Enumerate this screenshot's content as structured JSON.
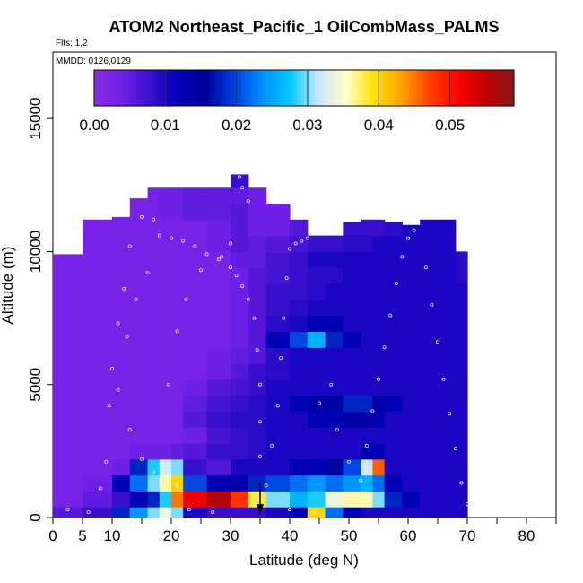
{
  "chart_data": {
    "type": "heatmap",
    "title": "ATOM2 Northeast_Pacific_1 OilCombMass_PALMS",
    "flights_label": "Flts: 1,2",
    "date_label": "MMDD: 0126,0129",
    "xlabel": "Latitude (deg N)",
    "ylabel": "Altitude (m)",
    "xlim": [
      0,
      85
    ],
    "ylim": [
      0,
      17500
    ],
    "x_ticks": [
      0,
      5,
      10,
      15,
      20,
      25,
      30,
      35,
      40,
      45,
      50,
      55,
      60,
      65,
      70,
      75,
      80,
      85
    ],
    "x_tick_labels": [
      {
        "value": 0,
        "label": "0"
      },
      {
        "value": 5,
        "label": "5"
      },
      {
        "value": 10,
        "label": "10"
      },
      {
        "value": 20,
        "label": "20"
      },
      {
        "value": 30,
        "label": "30"
      },
      {
        "value": 40,
        "label": "40"
      },
      {
        "value": 50,
        "label": "50"
      },
      {
        "value": 60,
        "label": "60"
      },
      {
        "value": 70,
        "label": "70"
      },
      {
        "value": 80,
        "label": "80"
      }
    ],
    "y_ticks": [
      0,
      5000,
      10000,
      15000
    ],
    "y_tick_labels": [
      "0",
      "5000",
      "10000",
      "15000"
    ],
    "colorbar": {
      "min": 0,
      "max": 0.059,
      "ticks": [
        0.0,
        0.01,
        0.02,
        0.03,
        0.04,
        0.05
      ],
      "tick_labels": [
        "0.00",
        "0.01",
        "0.02",
        "0.03",
        "0.04",
        "0.05"
      ],
      "colors": [
        "#8a2be2",
        "#7020e8",
        "#3a10d0",
        "#0000b8",
        "#00009a",
        "#0040e0",
        "#0090ff",
        "#00c8ff",
        "#c8e8ff",
        "#ffffc8",
        "#ffe000",
        "#ffa000",
        "#ff4000",
        "#ff0000",
        "#c00000",
        "#8b1a1a"
      ]
    },
    "level_boundaries": [
      0,
      400,
      1000,
      1600,
      2200,
      2800,
      3400,
      4000,
      4600,
      5200,
      5800,
      6400,
      7000,
      7600,
      8200,
      8800,
      9400,
      10000,
      10600,
      11200,
      11800,
      12400,
      13000
    ],
    "lat_edges": [
      0,
      5,
      10,
      13,
      16,
      18,
      20,
      22,
      26,
      30,
      33,
      36,
      40,
      43,
      46,
      49,
      52,
      54,
      56,
      59,
      62,
      65,
      68,
      70
    ],
    "ascent_latitude": 35,
    "columns": [
      {
        "lat": [
          0,
          5
        ],
        "top": 0,
        "v": [
          0.006,
          0.003,
          0.003,
          0.003,
          0.003,
          0.003,
          0.003,
          0.003,
          0.003,
          0.003,
          0.003,
          0.003,
          0.003,
          0.003,
          0.003,
          0.003,
          0.003,
          0.003,
          0.003,
          0.003
        ]
      },
      {
        "lat": [
          5,
          10
        ],
        "top": 0,
        "v": [
          0.008,
          0.005,
          0.004,
          0.003,
          0.003,
          0.003,
          0.003,
          0.003,
          0.003,
          0.003,
          0.003,
          0.003,
          0.003,
          0.003,
          0.003,
          0.003,
          0.003,
          0.003,
          0.003
        ]
      },
      {
        "lat": [
          10,
          13
        ],
        "top": 0,
        "v": [
          0.018,
          0.008,
          0.012,
          0.004,
          0.003,
          0.003,
          0.003,
          0.003,
          0.003,
          0.003,
          0.003,
          0.003,
          0.003,
          0.003,
          0.003,
          0.003,
          0.003,
          0.003,
          0.003,
          0.003
        ]
      },
      {
        "lat": [
          13,
          16
        ],
        "top": 0,
        "v": [
          0.024,
          0.012,
          0.022,
          0.018,
          0.004,
          0.003,
          0.003,
          0.003,
          0.003,
          0.003,
          0.003,
          0.003,
          0.003,
          0.003,
          0.003,
          0.003,
          0.003,
          0.003,
          0.003,
          0.003,
          0.003
        ]
      },
      {
        "lat": [
          16,
          18
        ],
        "top": 0,
        "v": [
          0.03,
          0.018,
          0.03,
          0.028,
          0.004,
          0.003,
          0.003,
          0.003,
          0.003,
          0.003,
          0.003,
          0.003,
          0.003,
          0.003,
          0.003,
          0.003,
          0.003,
          0.003,
          0.003,
          0.003,
          0.003
        ]
      },
      {
        "lat": [
          18,
          20
        ],
        "top": 0,
        "v": [
          0.034,
          0.028,
          0.036,
          0.032,
          0.004,
          0.003,
          0.003,
          0.003,
          0.003,
          0.003,
          0.003,
          0.003,
          0.003,
          0.003,
          0.003,
          0.003,
          0.003,
          0.003,
          0.003,
          0.004,
          0.004
        ]
      },
      {
        "lat": [
          20,
          22
        ],
        "top": 0,
        "v": [
          0.03,
          0.045,
          0.04,
          0.03,
          0.005,
          0.003,
          0.003,
          0.003,
          0.003,
          0.003,
          0.003,
          0.003,
          0.003,
          0.003,
          0.003,
          0.003,
          0.003,
          0.003,
          0.003,
          0.004,
          0.004
        ]
      },
      {
        "lat": [
          22,
          26
        ],
        "top": 0,
        "v": [
          0.01,
          0.052,
          0.02,
          0.008,
          0.006,
          0.004,
          0.006,
          0.005,
          0.004,
          0.003,
          0.003,
          0.003,
          0.003,
          0.003,
          0.003,
          0.003,
          0.003,
          0.003,
          0.003,
          0.005,
          0.005
        ]
      },
      {
        "lat": [
          26,
          30
        ],
        "top": 0,
        "v": [
          0.008,
          0.056,
          0.012,
          0.006,
          0.008,
          0.007,
          0.008,
          0.007,
          0.006,
          0.004,
          0.004,
          0.003,
          0.003,
          0.003,
          0.003,
          0.003,
          0.003,
          0.004,
          0.004,
          0.005,
          0.005,
          0.006
        ]
      },
      {
        "lat": [
          30,
          33
        ],
        "top": 0,
        "v": [
          0.008,
          0.048,
          0.014,
          0.01,
          0.008,
          0.008,
          0.009,
          0.008,
          0.007,
          0.006,
          0.005,
          0.004,
          0.004,
          0.004,
          0.004,
          0.004,
          0.005,
          0.006,
          0.006,
          0.006,
          0.005,
          0.008
        ]
      },
      {
        "lat": [
          33,
          36
        ],
        "top": 0,
        "v": [
          0.008,
          0.038,
          0.018,
          0.01,
          0.009,
          0.009,
          0.009,
          0.009,
          0.008,
          0.008,
          0.006,
          0.006,
          0.006,
          0.006,
          0.006,
          0.006,
          0.005,
          0.005,
          0.004,
          0.004,
          0.004
        ]
      },
      {
        "lat": [
          36,
          40
        ],
        "top": 0,
        "v": [
          0.01,
          0.03,
          0.02,
          0.01,
          0.01,
          0.01,
          0.01,
          0.01,
          0.01,
          0.009,
          0.009,
          0.012,
          0.009,
          0.008,
          0.008,
          0.007,
          0.007,
          0.006,
          0.004,
          0.004
        ]
      },
      {
        "lat": [
          40,
          43
        ],
        "top": 0,
        "v": [
          0.012,
          0.026,
          0.022,
          0.012,
          0.01,
          0.01,
          0.01,
          0.012,
          0.01,
          0.01,
          0.01,
          0.02,
          0.01,
          0.009,
          0.008,
          0.008,
          0.008,
          0.007,
          0.006
        ]
      },
      {
        "lat": [
          43,
          46
        ],
        "top": 0,
        "v": [
          0.04,
          0.028,
          0.024,
          0.012,
          0.01,
          0.01,
          0.012,
          0.014,
          0.01,
          0.01,
          0.01,
          0.026,
          0.012,
          0.01,
          0.009,
          0.009,
          0.01,
          0.008
        ]
      },
      {
        "lat": [
          46,
          49
        ],
        "top": 0,
        "v": [
          0.022,
          0.034,
          0.022,
          0.016,
          0.01,
          0.01,
          0.012,
          0.016,
          0.01,
          0.01,
          0.01,
          0.018,
          0.012,
          0.01,
          0.01,
          0.009,
          0.01,
          0.008
        ]
      },
      {
        "lat": [
          49,
          52
        ],
        "top": 0,
        "v": [
          0.012,
          0.036,
          0.024,
          0.02,
          0.01,
          0.01,
          0.014,
          0.018,
          0.01,
          0.01,
          0.01,
          0.012,
          0.01,
          0.01,
          0.01,
          0.01,
          0.01,
          0.009,
          0.008
        ]
      },
      {
        "lat": [
          52,
          54
        ],
        "top": 0,
        "v": [
          0.01,
          0.036,
          0.026,
          0.032,
          0.012,
          0.01,
          0.014,
          0.018,
          0.01,
          0.01,
          0.01,
          0.01,
          0.01,
          0.01,
          0.01,
          0.01,
          0.01,
          0.009,
          0.008
        ]
      },
      {
        "lat": [
          54,
          56
        ],
        "top": 0,
        "v": [
          0.01,
          0.03,
          0.022,
          0.046,
          0.012,
          0.01,
          0.012,
          0.014,
          0.01,
          0.01,
          0.01,
          0.01,
          0.01,
          0.01,
          0.01,
          0.01,
          0.01,
          0.01,
          0.008
        ]
      },
      {
        "lat": [
          56,
          59
        ],
        "top": 0,
        "v": [
          0.01,
          0.018,
          0.012,
          0.01,
          0.01,
          0.01,
          0.01,
          0.012,
          0.01,
          0.01,
          0.01,
          0.01,
          0.01,
          0.01,
          0.01,
          0.01,
          0.01,
          0.01,
          0.009,
          0.008
        ]
      },
      {
        "lat": [
          59,
          62
        ],
        "top": 0,
        "v": [
          0.01,
          0.012,
          0.01,
          0.01,
          0.01,
          0.01,
          0.01,
          0.01,
          0.01,
          0.01,
          0.01,
          0.01,
          0.01,
          0.01,
          0.01,
          0.01,
          0.01,
          0.01,
          0.01,
          0.009
        ]
      },
      {
        "lat": [
          62,
          65
        ],
        "top": 0,
        "v": [
          0.01,
          0.01,
          0.01,
          0.01,
          0.01,
          0.01,
          0.01,
          0.01,
          0.01,
          0.01,
          0.01,
          0.01,
          0.01,
          0.01,
          0.01,
          0.01,
          0.01,
          0.01,
          0.01,
          0.009
        ]
      },
      {
        "lat": [
          65,
          68
        ],
        "top": 0,
        "v": [
          0.01,
          0.01,
          0.01,
          0.01,
          0.01,
          0.01,
          0.01,
          0.01,
          0.01,
          0.01,
          0.01,
          0.01,
          0.01,
          0.01,
          0.01,
          0.01,
          0.01,
          0.01,
          0.01,
          0.01
        ]
      },
      {
        "lat": [
          68,
          70
        ],
        "top": 0,
        "v": [
          0.01,
          0.01,
          0.01,
          0.01,
          0.01,
          0.01,
          0.01,
          0.01,
          0.01,
          0.01,
          0.01,
          0.01,
          0.01,
          0.01,
          0.01,
          0.009,
          0.009
        ]
      }
    ],
    "column_tops": [
      9900,
      11300,
      11300,
      12000,
      12400,
      12400,
      12400,
      12400,
      12400,
      12900,
      12400,
      12400,
      11400,
      11300,
      11100,
      11100,
      11200,
      11200,
      11100,
      11000,
      11200,
      11200,
      10400
    ],
    "flight_track_points": [
      [
        2.5,
        300
      ],
      [
        6,
        200
      ],
      [
        8,
        1100
      ],
      [
        9,
        2100
      ],
      [
        9.5,
        4200
      ],
      [
        10,
        5600
      ],
      [
        11,
        7300
      ],
      [
        12,
        8600
      ],
      [
        13,
        10200
      ],
      [
        15,
        11300
      ],
      [
        17,
        11200
      ],
      [
        18,
        10600
      ],
      [
        20,
        10500
      ],
      [
        22,
        10400
      ],
      [
        24,
        10200
      ],
      [
        26,
        9900
      ],
      [
        28,
        9700
      ],
      [
        30,
        9400
      ],
      [
        31,
        9100
      ],
      [
        32,
        8700
      ],
      [
        33,
        8200
      ],
      [
        34,
        7500
      ],
      [
        34.5,
        6300
      ],
      [
        35,
        5000
      ],
      [
        35,
        3600
      ],
      [
        35,
        2300
      ],
      [
        35,
        900
      ],
      [
        36,
        1200
      ],
      [
        37,
        2700
      ],
      [
        38,
        4200
      ],
      [
        38.5,
        6000
      ],
      [
        39,
        7500
      ],
      [
        39.5,
        9000
      ],
      [
        40,
        10100
      ],
      [
        41,
        10300
      ],
      [
        42,
        10400
      ],
      [
        43,
        10500
      ],
      [
        45,
        4300
      ],
      [
        47,
        5000
      ],
      [
        48,
        3300
      ],
      [
        50,
        2100
      ],
      [
        52,
        1400
      ],
      [
        53,
        2700
      ],
      [
        54,
        4000
      ],
      [
        55,
        5200
      ],
      [
        56,
        6400
      ],
      [
        57,
        7600
      ],
      [
        58,
        8800
      ],
      [
        59,
        9800
      ],
      [
        60,
        10500
      ],
      [
        61,
        10800
      ],
      [
        63,
        9400
      ],
      [
        64,
        8000
      ],
      [
        65,
        6600
      ],
      [
        66,
        5200
      ],
      [
        67,
        3900
      ],
      [
        68,
        2600
      ],
      [
        69,
        1300
      ],
      [
        70,
        500
      ],
      [
        19.5,
        5000
      ],
      [
        21,
        7000
      ],
      [
        22.5,
        8200
      ],
      [
        25,
        9300
      ],
      [
        28.5,
        9800
      ],
      [
        30,
        10300
      ],
      [
        31.5,
        12800
      ],
      [
        32,
        12400
      ],
      [
        33,
        11900
      ],
      [
        16,
        9200
      ],
      [
        14,
        8200
      ],
      [
        12.5,
        6800
      ],
      [
        11,
        4800
      ],
      [
        13,
        3300
      ],
      [
        15,
        2200
      ],
      [
        17,
        1700
      ],
      [
        21,
        1200
      ],
      [
        23,
        300
      ],
      [
        27,
        200
      ],
      [
        40,
        300
      ],
      [
        44,
        200
      ]
    ]
  }
}
